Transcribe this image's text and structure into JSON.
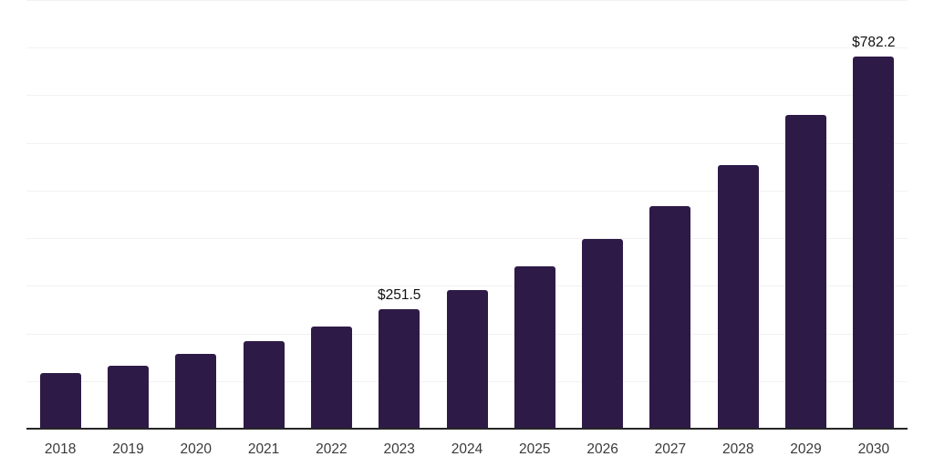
{
  "chart_data": {
    "type": "bar",
    "title": "",
    "xlabel": "",
    "ylabel": "",
    "categories": [
      "2018",
      "2019",
      "2020",
      "2021",
      "2022",
      "2023",
      "2024",
      "2025",
      "2026",
      "2027",
      "2028",
      "2029",
      "2030"
    ],
    "values": [
      116.0,
      132.0,
      157.0,
      184.5,
      215.0,
      251.5,
      291.5,
      340.0,
      399.0,
      468.0,
      552.5,
      658.0,
      782.2
    ],
    "data_labels": [
      null,
      null,
      null,
      null,
      null,
      "$251.5",
      null,
      null,
      null,
      null,
      null,
      null,
      "$782.2"
    ],
    "ylim": [
      0,
      900
    ],
    "grid_step": 100,
    "grid": "horizontal",
    "legend": "none",
    "colors": {
      "bar": "#2e1a47",
      "axis_line": "#262626",
      "gridline": "#f2f2f2",
      "tick_label": "#3a3a3a",
      "value_label": "#111111",
      "background": "#ffffff"
    }
  }
}
